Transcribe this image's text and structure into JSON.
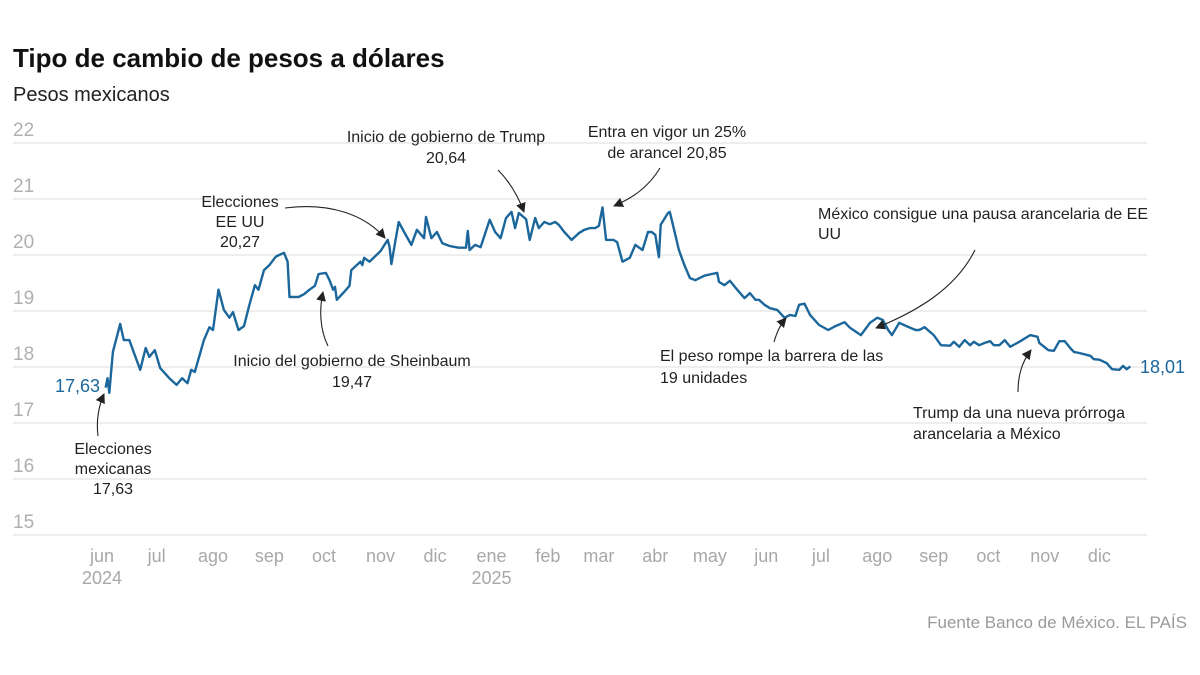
{
  "chart_data": {
    "type": "line",
    "title": "Tipo de cambio de pesos a dólares",
    "subtitle": "Pesos mexicanos",
    "xlabel": "",
    "ylabel": "",
    "ylim": [
      15,
      22
    ],
    "xlim": [
      "2024-06-01",
      "2025-12-31"
    ],
    "grid": true,
    "line_color": "#1b679b",
    "y_ticks": [
      "22",
      "21",
      "20",
      "19",
      "18",
      "17",
      "16",
      "15"
    ],
    "x_ticks": [
      {
        "label": "jun",
        "date": "2024-06-01",
        "year": "2024"
      },
      {
        "label": "jul",
        "date": "2024-07-01"
      },
      {
        "label": "ago",
        "date": "2024-08-01"
      },
      {
        "label": "sep",
        "date": "2024-09-01"
      },
      {
        "label": "oct",
        "date": "2024-10-01"
      },
      {
        "label": "nov",
        "date": "2024-11-01"
      },
      {
        "label": "dic",
        "date": "2024-12-01"
      },
      {
        "label": "ene",
        "date": "2025-01-01",
        "year": "2025"
      },
      {
        "label": "feb",
        "date": "2025-02-01"
      },
      {
        "label": "mar",
        "date": "2025-03-01"
      },
      {
        "label": "abr",
        "date": "2025-04-01"
      },
      {
        "label": "may",
        "date": "2025-05-01"
      },
      {
        "label": "jun",
        "date": "2025-06-01"
      },
      {
        "label": "jul",
        "date": "2025-07-01"
      },
      {
        "label": "ago",
        "date": "2025-08-01"
      },
      {
        "label": "sep",
        "date": "2025-09-01"
      },
      {
        "label": "oct",
        "date": "2025-10-01"
      },
      {
        "label": "nov",
        "date": "2025-11-01"
      },
      {
        "label": "dic",
        "date": "2025-12-01"
      }
    ],
    "series": [
      {
        "points": [
          [
            "2024-06-03",
            17.63
          ],
          [
            "2024-06-04",
            17.8
          ],
          [
            "2024-06-05",
            17.54
          ],
          [
            "2024-06-07",
            18.27
          ],
          [
            "2024-06-11",
            18.77
          ],
          [
            "2024-06-13",
            18.48
          ],
          [
            "2024-06-16",
            18.48
          ],
          [
            "2024-06-22",
            17.95
          ],
          [
            "2024-06-25",
            18.34
          ],
          [
            "2024-06-27",
            18.18
          ],
          [
            "2024-06-30",
            18.3
          ],
          [
            "2024-07-03",
            17.98
          ],
          [
            "2024-07-08",
            17.8
          ],
          [
            "2024-07-12",
            17.68
          ],
          [
            "2024-07-15",
            17.8
          ],
          [
            "2024-07-18",
            17.71
          ],
          [
            "2024-07-20",
            17.95
          ],
          [
            "2024-07-22",
            17.91
          ],
          [
            "2024-07-27",
            18.48
          ],
          [
            "2024-07-30",
            18.71
          ],
          [
            "2024-08-01",
            18.66
          ],
          [
            "2024-08-04",
            19.38
          ],
          [
            "2024-08-07",
            19.02
          ],
          [
            "2024-08-10",
            18.88
          ],
          [
            "2024-08-12",
            18.98
          ],
          [
            "2024-08-15",
            18.66
          ],
          [
            "2024-08-18",
            18.73
          ],
          [
            "2024-08-21",
            19.11
          ],
          [
            "2024-08-24",
            19.46
          ],
          [
            "2024-08-26",
            19.38
          ],
          [
            "2024-08-29",
            19.73
          ],
          [
            "2024-09-01",
            19.82
          ],
          [
            "2024-09-04",
            19.95
          ],
          [
            "2024-09-05",
            19.98
          ],
          [
            "2024-09-09",
            20.04
          ],
          [
            "2024-09-11",
            19.88
          ],
          [
            "2024-09-12",
            19.25
          ],
          [
            "2024-09-17",
            19.25
          ],
          [
            "2024-09-20",
            19.3
          ],
          [
            "2024-09-23",
            19.38
          ],
          [
            "2024-09-26",
            19.45
          ],
          [
            "2024-09-28",
            19.66
          ],
          [
            "2024-10-02",
            19.68
          ],
          [
            "2024-10-04",
            19.55
          ],
          [
            "2024-10-06",
            19.38
          ],
          [
            "2024-10-07",
            19.43
          ],
          [
            "2024-10-08",
            19.2
          ],
          [
            "2024-10-12",
            19.34
          ],
          [
            "2024-10-15",
            19.45
          ],
          [
            "2024-10-16",
            19.73
          ],
          [
            "2024-10-21",
            19.88
          ],
          [
            "2024-10-22",
            19.82
          ],
          [
            "2024-10-23",
            19.95
          ],
          [
            "2024-10-26",
            19.88
          ],
          [
            "2024-11-01",
            20.07
          ],
          [
            "2024-11-05",
            20.27
          ],
          [
            "2024-11-06",
            20.14
          ],
          [
            "2024-11-07",
            19.84
          ],
          [
            "2024-11-09",
            20.21
          ],
          [
            "2024-11-11",
            20.59
          ],
          [
            "2024-11-14",
            20.41
          ],
          [
            "2024-11-18",
            20.18
          ],
          [
            "2024-11-21",
            20.45
          ],
          [
            "2024-11-25",
            20.3
          ],
          [
            "2024-11-26",
            20.68
          ],
          [
            "2024-11-29",
            20.3
          ],
          [
            "2024-12-02",
            20.41
          ],
          [
            "2024-12-05",
            20.21
          ],
          [
            "2024-12-09",
            20.16
          ],
          [
            "2024-12-14",
            20.13
          ],
          [
            "2024-12-18",
            20.13
          ],
          [
            "2024-12-19",
            20.43
          ],
          [
            "2024-12-20",
            20.09
          ],
          [
            "2024-12-23",
            20.18
          ],
          [
            "2024-12-26",
            20.14
          ],
          [
            "2024-12-31",
            20.63
          ],
          [
            "2025-01-03",
            20.41
          ],
          [
            "2025-01-06",
            20.3
          ],
          [
            "2025-01-09",
            20.66
          ],
          [
            "2025-01-12",
            20.77
          ],
          [
            "2025-01-14",
            20.48
          ],
          [
            "2025-01-16",
            20.75
          ],
          [
            "2025-01-20",
            20.64
          ],
          [
            "2025-01-22",
            20.27
          ],
          [
            "2025-01-25",
            20.66
          ],
          [
            "2025-01-27",
            20.48
          ],
          [
            "2025-01-30",
            20.59
          ],
          [
            "2025-02-02",
            20.55
          ],
          [
            "2025-02-05",
            20.59
          ],
          [
            "2025-02-07",
            20.54
          ],
          [
            "2025-02-10",
            20.41
          ],
          [
            "2025-02-14",
            20.27
          ],
          [
            "2025-02-18",
            20.39
          ],
          [
            "2025-02-21",
            20.45
          ],
          [
            "2025-02-24",
            20.48
          ],
          [
            "2025-02-27",
            20.48
          ],
          [
            "2025-03-01",
            20.52
          ],
          [
            "2025-03-03",
            20.85
          ],
          [
            "2025-03-05",
            20.27
          ],
          [
            "2025-03-09",
            20.27
          ],
          [
            "2025-03-11",
            20.23
          ],
          [
            "2025-03-14",
            19.88
          ],
          [
            "2025-03-18",
            19.95
          ],
          [
            "2025-03-21",
            20.18
          ],
          [
            "2025-03-25",
            20.09
          ],
          [
            "2025-03-28",
            20.41
          ],
          [
            "2025-03-30",
            20.41
          ],
          [
            "2025-04-01",
            20.36
          ],
          [
            "2025-04-03",
            19.96
          ],
          [
            "2025-04-04",
            20.54
          ],
          [
            "2025-04-08",
            20.75
          ],
          [
            "2025-04-09",
            20.77
          ],
          [
            "2025-04-12",
            20.36
          ],
          [
            "2025-04-14",
            20.09
          ],
          [
            "2025-04-17",
            19.82
          ],
          [
            "2025-04-20",
            19.59
          ],
          [
            "2025-04-23",
            19.55
          ],
          [
            "2025-04-28",
            19.63
          ],
          [
            "2025-05-02",
            19.66
          ],
          [
            "2025-05-05",
            19.68
          ],
          [
            "2025-05-06",
            19.52
          ],
          [
            "2025-05-09",
            19.46
          ],
          [
            "2025-05-12",
            19.54
          ],
          [
            "2025-05-16",
            19.38
          ],
          [
            "2025-05-20",
            19.23
          ],
          [
            "2025-05-23",
            19.32
          ],
          [
            "2025-05-26",
            19.2
          ],
          [
            "2025-05-28",
            19.2
          ],
          [
            "2025-05-31",
            19.11
          ],
          [
            "2025-06-03",
            19.05
          ],
          [
            "2025-06-07",
            19.02
          ],
          [
            "2025-06-11",
            18.88
          ],
          [
            "2025-06-14",
            18.93
          ],
          [
            "2025-06-17",
            18.91
          ],
          [
            "2025-06-19",
            19.11
          ],
          [
            "2025-06-22",
            19.13
          ],
          [
            "2025-06-25",
            18.93
          ],
          [
            "2025-06-30",
            18.75
          ],
          [
            "2025-07-05",
            18.66
          ],
          [
            "2025-07-09",
            18.73
          ],
          [
            "2025-07-14",
            18.8
          ],
          [
            "2025-07-17",
            18.7
          ],
          [
            "2025-07-23",
            18.57
          ],
          [
            "2025-07-28",
            18.79
          ],
          [
            "2025-08-01",
            18.88
          ],
          [
            "2025-08-04",
            18.84
          ],
          [
            "2025-08-07",
            18.66
          ],
          [
            "2025-08-09",
            18.57
          ],
          [
            "2025-08-13",
            18.79
          ],
          [
            "2025-08-17",
            18.73
          ],
          [
            "2025-08-22",
            18.66
          ],
          [
            "2025-08-24",
            18.66
          ],
          [
            "2025-08-27",
            18.71
          ],
          [
            "2025-09-01",
            18.57
          ],
          [
            "2025-09-05",
            18.39
          ],
          [
            "2025-09-10",
            18.38
          ],
          [
            "2025-09-12",
            18.45
          ],
          [
            "2025-09-15",
            18.36
          ],
          [
            "2025-09-18",
            18.48
          ],
          [
            "2025-09-21",
            18.39
          ],
          [
            "2025-09-23",
            18.45
          ],
          [
            "2025-09-26",
            18.39
          ],
          [
            "2025-09-29",
            18.43
          ],
          [
            "2025-10-02",
            18.46
          ],
          [
            "2025-10-04",
            18.39
          ],
          [
            "2025-10-07",
            18.39
          ],
          [
            "2025-10-10",
            18.48
          ],
          [
            "2025-10-13",
            18.36
          ],
          [
            "2025-10-18",
            18.45
          ],
          [
            "2025-10-24",
            18.57
          ],
          [
            "2025-10-28",
            18.54
          ],
          [
            "2025-10-29",
            18.43
          ],
          [
            "2025-11-03",
            18.3
          ],
          [
            "2025-11-06",
            18.29
          ],
          [
            "2025-11-09",
            18.46
          ],
          [
            "2025-11-12",
            18.46
          ],
          [
            "2025-11-15",
            18.34
          ],
          [
            "2025-11-17",
            18.27
          ],
          [
            "2025-11-20",
            18.25
          ],
          [
            "2025-11-26",
            18.2
          ],
          [
            "2025-11-28",
            18.14
          ],
          [
            "2025-12-01",
            18.13
          ],
          [
            "2025-12-05",
            18.07
          ],
          [
            "2025-12-08",
            17.96
          ],
          [
            "2025-12-12",
            17.95
          ],
          [
            "2025-12-14",
            18.02
          ],
          [
            "2025-12-16",
            17.96
          ],
          [
            "2025-12-18",
            18.01
          ]
        ]
      }
    ],
    "start_label": "17,63",
    "end_label": "18,01",
    "annotations": [
      {
        "lines": [
          "Elecciones",
          "mexicanas",
          "17,63"
        ]
      },
      {
        "lines": [
          "Elecciones",
          "EE UU",
          "20,27"
        ]
      },
      {
        "lines": [
          "Inicio de gobierno de Trump",
          "20,64"
        ]
      },
      {
        "lines": [
          "Entra en vigor un 25%",
          "de arancel 20,85"
        ]
      },
      {
        "lines": [
          "Inicio del gobierno de Sheinbaum",
          "19,47"
        ]
      },
      {
        "lines": [
          "México consigue una pausa arancelaria de EE",
          "UU"
        ]
      },
      {
        "lines": [
          "El peso rompe la barrera de las",
          "19 unidades"
        ]
      },
      {
        "lines": [
          "Trump da una nueva prórroga",
          "arancelaria a México"
        ]
      }
    ],
    "source": "Fuente Banco de México. EL PAÍS"
  }
}
